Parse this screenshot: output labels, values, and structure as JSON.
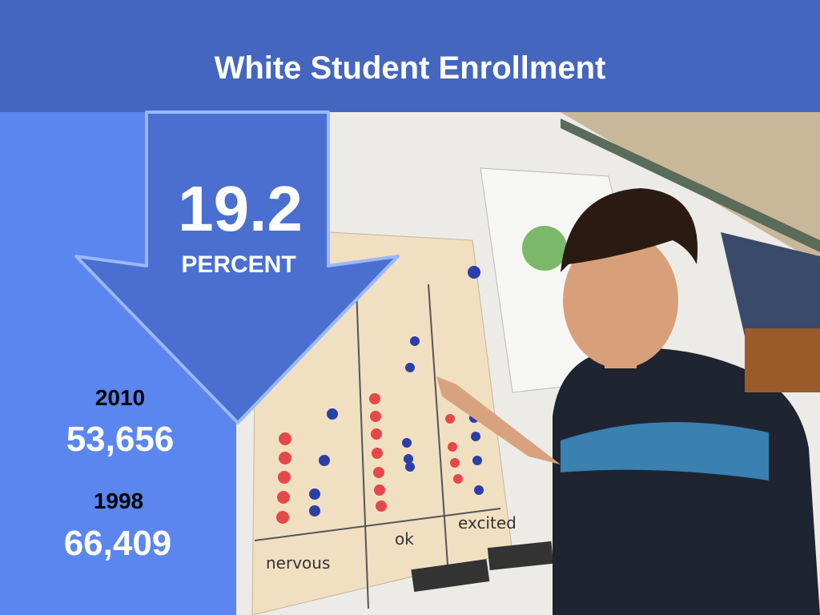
{
  "header": {
    "title": "White Student Enrollment"
  },
  "highlight": {
    "value": 19.2,
    "unit": "PERCENT"
  },
  "stats": [
    {
      "year": "2010",
      "value": "53,656"
    },
    {
      "year": "1998",
      "value": "66,409"
    }
  ],
  "photo": {
    "poster_labels": [
      "nervous",
      "ok",
      "excited"
    ]
  }
}
